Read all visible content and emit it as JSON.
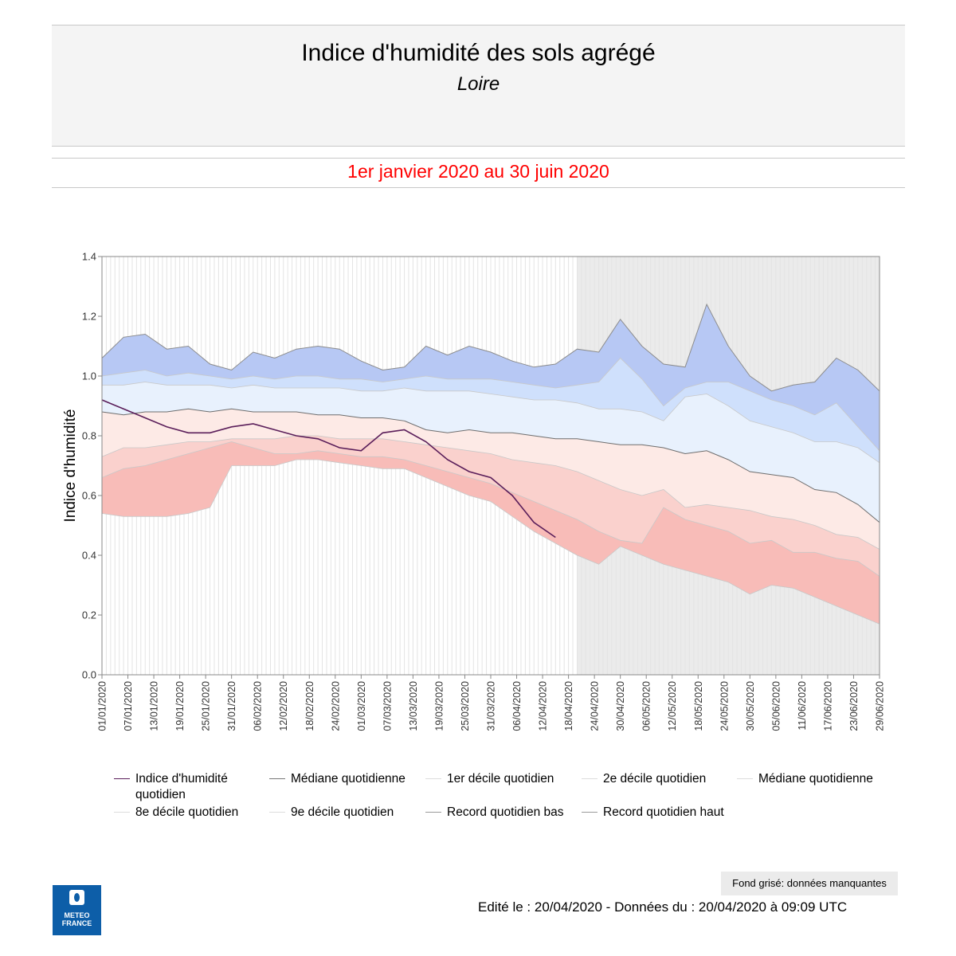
{
  "header": {
    "title": "Indice d'humidité des sols agrégé",
    "subtitle": "Loire",
    "period": "1er janvier 2020 au 30 juin 2020"
  },
  "colors": {
    "period_text": "#ff0000",
    "observed_line": "#5a1e5a",
    "median_line": "#777777",
    "band_record_high": "#b7c8f4",
    "band_9e": "#cfe0fc",
    "band_8e": "#e8f1fd",
    "band_2e": "#fdeae6",
    "band_1er": "#fad1cd",
    "band_record_low": "#f8bcb8",
    "missing_bg": "#ebebeb",
    "logo_bg": "#0d5ea8"
  },
  "chart_data": {
    "type": "area",
    "title": "",
    "xlabel": "",
    "ylabel": "Indice d'humidité",
    "ylim": [
      0,
      1.4
    ],
    "yticks": [
      0.0,
      0.2,
      0.4,
      0.6,
      0.8,
      1.0,
      1.2,
      1.4
    ],
    "yticklabels": [
      "0.0",
      "0.2",
      "0.4",
      "0.6",
      "0.8",
      "1.0",
      "1.2",
      "1.4"
    ],
    "xlim": [
      "01/01/2020",
      "29/06/2020"
    ],
    "xticklabels": [
      "01/01/2020",
      "07/01/2020",
      "13/01/2020",
      "19/01/2020",
      "25/01/2020",
      "31/01/2020",
      "06/02/2020",
      "12/02/2020",
      "18/02/2020",
      "24/02/2020",
      "01/03/2020",
      "07/03/2020",
      "13/03/2020",
      "19/03/2020",
      "25/03/2020",
      "31/03/2020",
      "06/04/2020",
      "12/04/2020",
      "18/04/2020",
      "24/04/2020",
      "30/04/2020",
      "06/05/2020",
      "12/05/2020",
      "18/05/2020",
      "24/05/2020",
      "30/05/2020",
      "05/06/2020",
      "11/06/2020",
      "17/06/2020",
      "23/06/2020",
      "29/06/2020"
    ],
    "missing_data_from": "20/04/2020",
    "grid": "vertical daily lines",
    "x": [
      "01/01/2020",
      "06/01/2020",
      "11/01/2020",
      "16/01/2020",
      "21/01/2020",
      "26/01/2020",
      "31/01/2020",
      "05/02/2020",
      "10/02/2020",
      "15/02/2020",
      "20/02/2020",
      "25/02/2020",
      "01/03/2020",
      "06/03/2020",
      "11/03/2020",
      "16/03/2020",
      "21/03/2020",
      "26/03/2020",
      "31/03/2020",
      "05/04/2020",
      "10/04/2020",
      "15/04/2020",
      "20/04/2020",
      "25/04/2020",
      "30/04/2020",
      "05/05/2020",
      "10/05/2020",
      "15/05/2020",
      "20/05/2020",
      "25/05/2020",
      "30/05/2020",
      "04/06/2020",
      "09/06/2020",
      "14/06/2020",
      "19/06/2020",
      "24/06/2020",
      "29/06/2020"
    ],
    "series": [
      {
        "name": "Record quotidien haut",
        "values": [
          1.06,
          1.13,
          1.14,
          1.09,
          1.1,
          1.04,
          1.02,
          1.08,
          1.06,
          1.09,
          1.1,
          1.09,
          1.05,
          1.02,
          1.03,
          1.1,
          1.07,
          1.1,
          1.08,
          1.05,
          1.03,
          1.04,
          1.09,
          1.08,
          1.19,
          1.1,
          1.04,
          1.03,
          1.24,
          1.1,
          1.0,
          0.95,
          0.97,
          0.98,
          1.06,
          1.02,
          0.95
        ]
      },
      {
        "name": "9e décile quotidien",
        "values": [
          1.0,
          1.01,
          1.02,
          1.0,
          1.01,
          1.0,
          0.99,
          1.0,
          0.99,
          1.0,
          1.0,
          0.99,
          0.99,
          0.98,
          0.99,
          1.0,
          0.99,
          0.99,
          0.99,
          0.98,
          0.97,
          0.96,
          0.97,
          0.98,
          1.06,
          0.99,
          0.9,
          0.96,
          0.98,
          0.98,
          0.95,
          0.92,
          0.9,
          0.87,
          0.91,
          0.83,
          0.75
        ]
      },
      {
        "name": "8e décile quotidien",
        "values": [
          0.97,
          0.97,
          0.98,
          0.97,
          0.97,
          0.97,
          0.96,
          0.97,
          0.96,
          0.96,
          0.96,
          0.96,
          0.95,
          0.95,
          0.96,
          0.95,
          0.95,
          0.95,
          0.94,
          0.93,
          0.92,
          0.92,
          0.91,
          0.89,
          0.89,
          0.88,
          0.85,
          0.93,
          0.94,
          0.9,
          0.85,
          0.83,
          0.81,
          0.78,
          0.78,
          0.76,
          0.71
        ]
      },
      {
        "name": "Médiane quotidienne",
        "values": [
          0.88,
          0.87,
          0.88,
          0.88,
          0.89,
          0.88,
          0.89,
          0.88,
          0.88,
          0.88,
          0.87,
          0.87,
          0.86,
          0.86,
          0.85,
          0.82,
          0.81,
          0.82,
          0.81,
          0.81,
          0.8,
          0.79,
          0.79,
          0.78,
          0.77,
          0.77,
          0.76,
          0.74,
          0.75,
          0.72,
          0.68,
          0.67,
          0.66,
          0.62,
          0.61,
          0.57,
          0.51
        ]
      },
      {
        "name": "2e décile quotidien",
        "values": [
          0.73,
          0.76,
          0.76,
          0.77,
          0.78,
          0.78,
          0.79,
          0.79,
          0.79,
          0.8,
          0.8,
          0.79,
          0.79,
          0.79,
          0.78,
          0.77,
          0.76,
          0.75,
          0.74,
          0.72,
          0.71,
          0.7,
          0.68,
          0.65,
          0.62,
          0.6,
          0.62,
          0.56,
          0.57,
          0.56,
          0.55,
          0.53,
          0.52,
          0.5,
          0.47,
          0.46,
          0.42
        ]
      },
      {
        "name": "1er décile quotidien",
        "values": [
          0.66,
          0.69,
          0.7,
          0.72,
          0.74,
          0.76,
          0.78,
          0.76,
          0.74,
          0.74,
          0.75,
          0.74,
          0.73,
          0.73,
          0.72,
          0.7,
          0.68,
          0.66,
          0.64,
          0.61,
          0.58,
          0.55,
          0.52,
          0.48,
          0.45,
          0.44,
          0.56,
          0.52,
          0.5,
          0.48,
          0.44,
          0.45,
          0.41,
          0.41,
          0.39,
          0.38,
          0.33
        ]
      },
      {
        "name": "Record quotidien bas",
        "values": [
          0.54,
          0.53,
          0.53,
          0.53,
          0.54,
          0.56,
          0.7,
          0.7,
          0.7,
          0.72,
          0.72,
          0.71,
          0.7,
          0.69,
          0.69,
          0.66,
          0.63,
          0.6,
          0.58,
          0.53,
          0.48,
          0.44,
          0.4,
          0.37,
          0.43,
          0.4,
          0.37,
          0.35,
          0.33,
          0.31,
          0.27,
          0.3,
          0.29,
          0.26,
          0.23,
          0.2,
          0.17
        ]
      },
      {
        "name": "Indice d'humidité quotidien",
        "x_end": "19/04/2020",
        "values": [
          0.92,
          0.89,
          0.86,
          0.83,
          0.81,
          0.81,
          0.83,
          0.84,
          0.82,
          0.8,
          0.79,
          0.76,
          0.75,
          0.81,
          0.82,
          0.78,
          0.72,
          0.68,
          0.66,
          0.6,
          0.51,
          0.46,
          null,
          null,
          null,
          null,
          null,
          null,
          null,
          null,
          null,
          null,
          null,
          null,
          null,
          null,
          null
        ]
      }
    ]
  },
  "legend": [
    {
      "label": "Indice d'humidité quotidien",
      "color": "#5a1e5a"
    },
    {
      "label": "Médiane quotidienne",
      "color": "#777777"
    },
    {
      "label": "1er décile quotidien",
      "color": "#dcdcdc"
    },
    {
      "label": "2e décile quotidien",
      "color": "#dcdcdc"
    },
    {
      "label": "Médiane quotidienne",
      "color": "#dcdcdc"
    },
    {
      "label": "8e décile quotidien",
      "color": "#dcdcdc"
    },
    {
      "label": "9e décile quotidien",
      "color": "#dcdcdc"
    },
    {
      "label": "Record quotidien bas",
      "color": "#999999"
    },
    {
      "label": "Record quotidien haut",
      "color": "#999999"
    }
  ],
  "note": "Fond grisé: données manquantes",
  "footer": "Edité le : 20/04/2020 - Données du : 20/04/2020 à 09:09 UTC",
  "logo": {
    "line1": "METEO",
    "line2": "FRANCE"
  }
}
